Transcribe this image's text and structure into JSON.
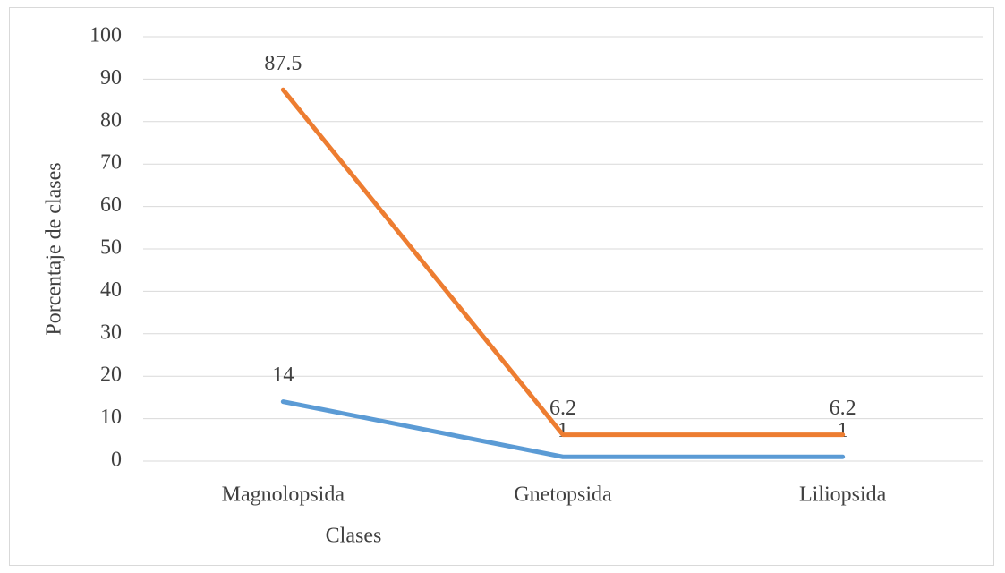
{
  "chart_data": {
    "type": "line",
    "x_label": "Clases",
    "y_label": "Porcentaje de clases",
    "categories": [
      "Magnolopsida",
      "Gnetopsida",
      "Liliopsida"
    ],
    "series": [
      {
        "color": "#5b9bd5",
        "values": [
          14,
          1,
          1
        ]
      },
      {
        "color": "#ed7d31",
        "values": [
          87.5,
          6.2,
          6.2
        ]
      }
    ],
    "ylim": [
      0,
      100
    ],
    "yticks": [
      0,
      10,
      20,
      30,
      40,
      50,
      60,
      70,
      80,
      90,
      100
    ],
    "grid": true
  }
}
